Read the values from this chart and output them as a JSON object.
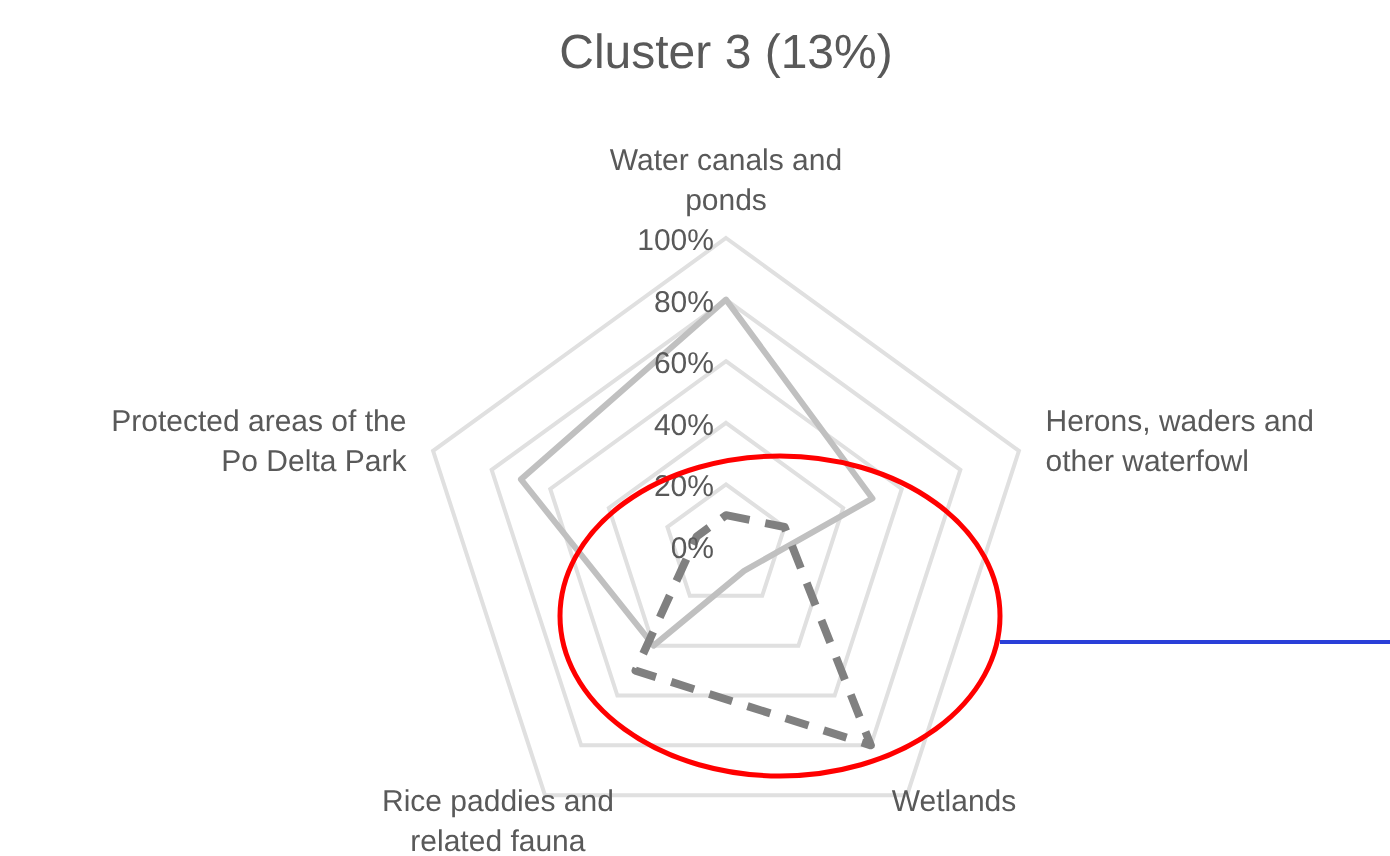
{
  "chart_data": {
    "type": "radar",
    "title": "Cluster 3 (13%)",
    "categories": [
      "Water canals and ponds",
      "Herons, waders and other waterfowl",
      "Wetlands",
      "Rice paddies and related fauna",
      "Protected areas of the Po Delta Park"
    ],
    "series": [
      {
        "color": "#c0c0c0",
        "line_style": "solid",
        "values": [
          80,
          50,
          10,
          40,
          70
        ]
      },
      {
        "color": "#808080",
        "line_style": "dashed",
        "values": [
          10,
          20,
          80,
          50,
          10
        ]
      }
    ],
    "ylim": [
      0,
      100
    ],
    "yticks": [
      {
        "value": 0,
        "label": "0%"
      },
      {
        "value": 20,
        "label": "20%"
      },
      {
        "value": 40,
        "label": "40%"
      },
      {
        "value": 60,
        "label": "60%"
      },
      {
        "value": 80,
        "label": "80%"
      },
      {
        "value": 100,
        "label": "100%"
      }
    ],
    "grid": true
  }
}
